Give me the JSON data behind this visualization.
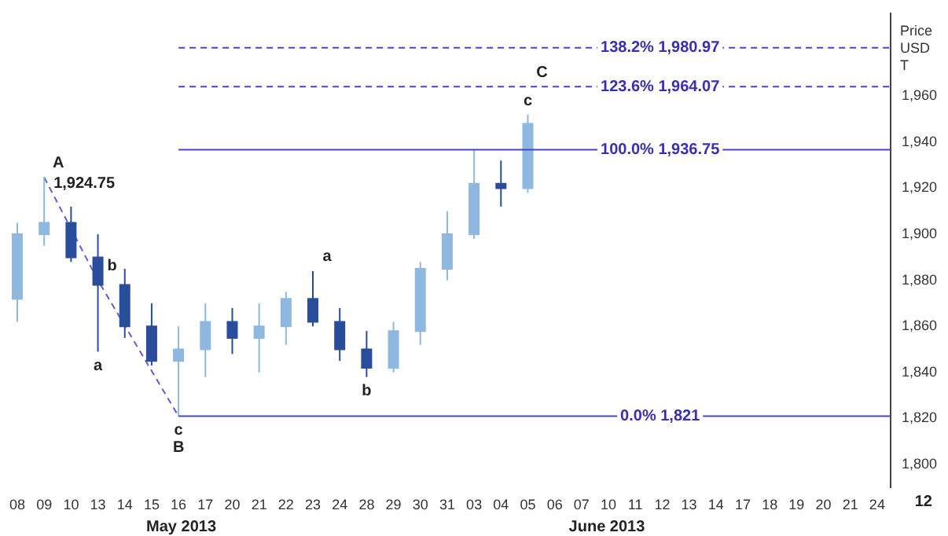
{
  "chart_data": {
    "type": "candlestick",
    "ylabel": "Price USD T",
    "categories": [
      "08",
      "09",
      "10",
      "13",
      "14",
      "15",
      "16",
      "17",
      "20",
      "21",
      "22",
      "23",
      "24",
      "28",
      "29",
      "30",
      "31",
      "03",
      "04",
      "05",
      "06",
      "07",
      "10",
      "11",
      "12",
      "13",
      "14",
      "17",
      "18",
      "19",
      "20",
      "21",
      "24"
    ],
    "ohlc": [
      [
        1872,
        1905,
        1862,
        1900
      ],
      [
        1900,
        1924.75,
        1895,
        1905
      ],
      [
        1905,
        1912,
        1888,
        1890
      ],
      [
        1890,
        1900,
        1849,
        1878
      ],
      [
        1878,
        1885,
        1855,
        1860
      ],
      [
        1860,
        1870,
        1843,
        1845
      ],
      [
        1845,
        1860,
        1821,
        1850
      ],
      [
        1850,
        1870,
        1838,
        1862
      ],
      [
        1862,
        1868,
        1848,
        1855
      ],
      [
        1855,
        1870,
        1840,
        1860
      ],
      [
        1860,
        1875,
        1852,
        1872
      ],
      [
        1872,
        1884,
        1860,
        1862
      ],
      [
        1862,
        1868,
        1845,
        1850
      ],
      [
        1850,
        1858,
        1838,
        1842
      ],
      [
        1842,
        1862,
        1840,
        1858
      ],
      [
        1858,
        1888,
        1852,
        1885
      ],
      [
        1885,
        1910,
        1880,
        1900
      ],
      [
        1900,
        1936.75,
        1898,
        1922
      ],
      [
        1922,
        1932,
        1912,
        1920
      ],
      [
        1920,
        1952,
        1918,
        1948
      ],
      null,
      null,
      null,
      null,
      null,
      null,
      null,
      null,
      null,
      null,
      null,
      null,
      null
    ],
    "series": [
      {
        "type": "line",
        "color": "#6a5acd",
        "line_style": "dashed",
        "values": [
          null,
          1924.75,
          null,
          1880,
          null,
          null,
          1821,
          null,
          null,
          null,
          null,
          null,
          null,
          null,
          null,
          null,
          null,
          null,
          null,
          null,
          null,
          null,
          null,
          null,
          null,
          null,
          null,
          null,
          null,
          null,
          null,
          null,
          null
        ]
      }
    ],
    "colors": [
      "#8fb8e0",
      "#8fb8e0",
      "#2a4d9b",
      "#2a4d9b",
      "#2a4d9b",
      "#2a4d9b",
      "#8fb8e0",
      "#8fb8e0",
      "#2a4d9b",
      "#8fb8e0",
      "#8fb8e0",
      "#2a4d9b",
      "#2a4d9b",
      "#2a4d9b",
      "#8fb8e0",
      "#8fb8e0",
      "#8fb8e0",
      "#8fb8e0",
      "#2a4d9b",
      "#8fb8e0",
      null,
      null,
      null,
      null,
      null,
      null,
      null,
      null,
      null,
      null,
      null,
      null,
      null
    ],
    "ylim": [
      1790,
      1996
    ],
    "yticks": [
      {
        "value": 1800,
        "label": "1,800"
      },
      {
        "value": 1820,
        "label": "1,820"
      },
      {
        "value": 1840,
        "label": "1,840"
      },
      {
        "value": 1860,
        "label": "1,860"
      },
      {
        "value": 1880,
        "label": "1,880"
      },
      {
        "value": 1900,
        "label": "1,900"
      },
      {
        "value": 1920,
        "label": "1,920"
      },
      {
        "value": 1940,
        "label": "1,940"
      },
      {
        "value": 1960,
        "label": "1,960"
      }
    ],
    "ref_lines": [
      {
        "axis": "y",
        "value": 1980.97,
        "label": "138.2% 1,980.97",
        "color": "#4b44c8",
        "line_style": "dashed"
      },
      {
        "axis": "y",
        "value": 1964.07,
        "label": "123.6% 1,964.07",
        "color": "#4b44c8",
        "line_style": "dashed"
      },
      {
        "axis": "y",
        "value": 1936.75,
        "label": "100.0% 1,936.75",
        "color": "#4b44c8",
        "line_style": "solid"
      },
      {
        "axis": "y",
        "value": 1821,
        "label": "0.0% 1,821",
        "color": "#4b44c8",
        "line_style": "solid"
      }
    ],
    "annotations": [
      {
        "text": "A",
        "x": "09",
        "y": 1924.75
      },
      {
        "text": "1,924.75",
        "x": "09",
        "y": 1924.75
      },
      {
        "text": "b",
        "x": "13",
        "y": 1880
      },
      {
        "text": "a",
        "x": "13",
        "y": 1849
      },
      {
        "text": "c",
        "x": "16",
        "y": 1821
      },
      {
        "text": "B",
        "x": "16",
        "y": 1821
      },
      {
        "text": "a",
        "x": "23",
        "y": 1884
      },
      {
        "text": "b",
        "x": "28",
        "y": 1838
      },
      {
        "text": "C",
        "x": "05",
        "y": 1964.07
      },
      {
        "text": "c",
        "x": "05",
        "y": 1964.07
      },
      "May 2013",
      "June 2013",
      "12"
    ],
    "grid": false,
    "legend": false
  }
}
